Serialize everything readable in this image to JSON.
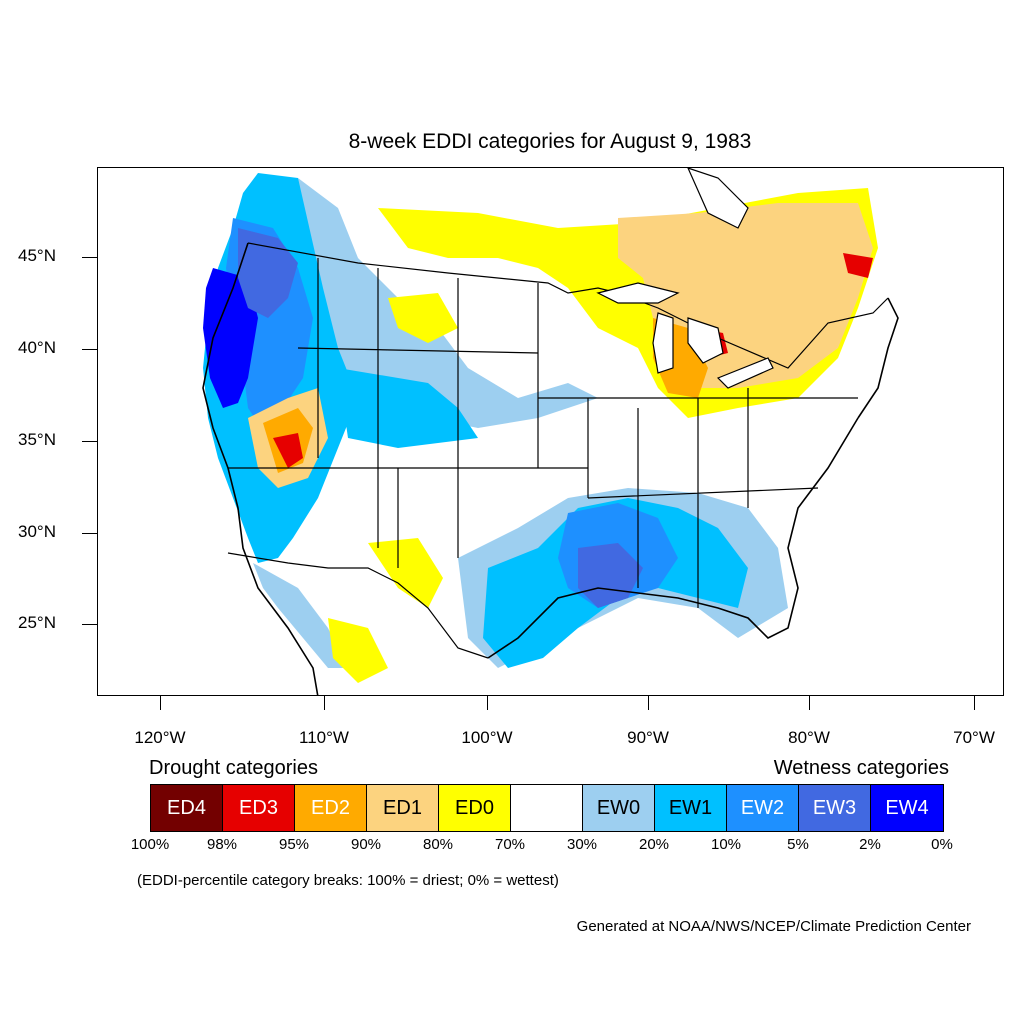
{
  "title": "8-week EDDI categories for August 9, 1983",
  "lat_labels": [
    "45°N",
    "40°N",
    "35°N",
    "30°N",
    "25°N"
  ],
  "lon_labels": [
    "120°W",
    "110°W",
    "100°W",
    "90°W",
    "80°W",
    "70°W"
  ],
  "legend": {
    "drought_heading": "Drought categories",
    "wetness_heading": "Wetness categories",
    "categories": [
      {
        "label": "ED4",
        "color": "#730000",
        "text_color": "#ffffff"
      },
      {
        "label": "ED3",
        "color": "#e60000",
        "text_color": "#ffffff"
      },
      {
        "label": "ED2",
        "color": "#ffaa00",
        "text_color": "#ffffff"
      },
      {
        "label": "ED1",
        "color": "#fcd37f",
        "text_color": "#000000"
      },
      {
        "label": "ED0",
        "color": "#ffff00",
        "text_color": "#000000"
      },
      {
        "label": "",
        "color": "#ffffff",
        "text_color": "#000000"
      },
      {
        "label": "EW0",
        "color": "#9dcff0",
        "text_color": "#000000"
      },
      {
        "label": "EW1",
        "color": "#00c0ff",
        "text_color": "#000000"
      },
      {
        "label": "EW2",
        "color": "#1e90ff",
        "text_color": "#ffffff"
      },
      {
        "label": "EW3",
        "color": "#4169e1",
        "text_color": "#ffffff"
      },
      {
        "label": "EW4",
        "color": "#0000ff",
        "text_color": "#ffffff"
      }
    ],
    "percentiles": [
      "100%",
      "98%",
      "95%",
      "90%",
      "80%",
      "70%",
      "30%",
      "20%",
      "10%",
      "5%",
      "2%",
      "0%"
    ]
  },
  "note": "(EDDI-percentile category breaks: 100% = driest; 0% = wettest)",
  "credit": "Generated at NOAA/NWS/NCEP/Climate Prediction Center"
}
